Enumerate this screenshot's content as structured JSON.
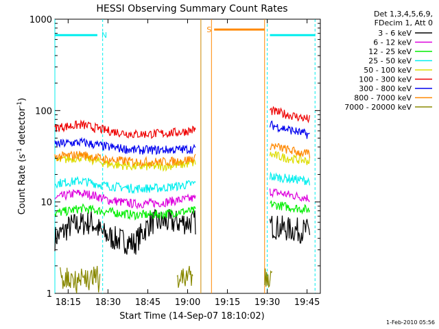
{
  "chart_data": {
    "type": "line",
    "title": "HESSI Observing Summary Count Rates",
    "xlabel": "Start Time (14-Sep-07 18:10:02)",
    "ylabel": "Count Rate (s",
    "ylabel_sup1": "-1",
    "ylabel_mid": " detector",
    "ylabel_sup2": "-1",
    "ylabel_end": ")",
    "y_scale": "log",
    "ylim": [
      1,
      1000
    ],
    "xlim": [
      "18:10",
      "19:50"
    ],
    "x_ticks": [
      "18:15",
      "18:30",
      "18:45",
      "19:00",
      "19:15",
      "19:30",
      "19:45"
    ],
    "y_ticks": [
      {
        "value": 1,
        "label": "1"
      },
      {
        "value": 10,
        "label": "10"
      },
      {
        "value": 100,
        "label": "100"
      },
      {
        "value": 1000,
        "label": "1000"
      }
    ],
    "legend_header": [
      "Det 1,3,4,5,6,9,",
      "FDecim 1, Att 0"
    ],
    "legend_position": "right",
    "footer": "1-Feb-2010 05:56",
    "series": [
      {
        "name": "3 - 6 keV",
        "color": "#000000",
        "points": [
          [
            "18:10",
            4
          ],
          [
            "18:16",
            5.5
          ],
          [
            "18:24",
            6
          ],
          [
            "18:28",
            4.5
          ],
          [
            "18:32",
            4
          ],
          [
            "18:40",
            3.5
          ],
          [
            "18:46",
            6
          ],
          [
            "18:55",
            6
          ],
          [
            "19:03",
            6
          ]
        ],
        "points2": [
          [
            "19:31",
            5.5
          ],
          [
            "19:38",
            5
          ],
          [
            "19:46",
            4.8
          ]
        ]
      },
      {
        "name": "6 - 12 keV",
        "color": "#dd00dd",
        "points": [
          [
            "18:10",
            11
          ],
          [
            "18:18",
            12.5
          ],
          [
            "18:24",
            12
          ],
          [
            "18:30",
            10.5
          ],
          [
            "18:40",
            9.5
          ],
          [
            "18:50",
            9.8
          ],
          [
            "18:57",
            10.5
          ],
          [
            "19:03",
            11
          ]
        ],
        "points2": [
          [
            "19:31",
            13
          ],
          [
            "19:38",
            12
          ],
          [
            "19:46",
            11
          ]
        ]
      },
      {
        "name": "12 - 25 keV",
        "color": "#00ee00",
        "points": [
          [
            "18:10",
            7.5
          ],
          [
            "18:20",
            8.5
          ],
          [
            "18:30",
            7.8
          ],
          [
            "18:40",
            7.2
          ],
          [
            "18:50",
            7.3
          ],
          [
            "18:57",
            7.8
          ],
          [
            "19:03",
            8
          ]
        ],
        "points2": [
          [
            "19:31",
            9.5
          ],
          [
            "19:38",
            8.8
          ],
          [
            "19:46",
            8.2
          ]
        ]
      },
      {
        "name": "25 - 50 keV",
        "color": "#00eeee",
        "points": [
          [
            "18:10",
            16
          ],
          [
            "18:20",
            17
          ],
          [
            "18:30",
            15
          ],
          [
            "18:40",
            14
          ],
          [
            "18:50",
            14.2
          ],
          [
            "18:57",
            15
          ],
          [
            "19:03",
            16
          ]
        ],
        "points2": [
          [
            "19:31",
            19
          ],
          [
            "19:38",
            18
          ],
          [
            "19:46",
            17
          ]
        ],
        "markers": [
          {
            "label": "N",
            "y": 670,
            "x_from": "18:10",
            "x_to": "18:26"
          },
          {
            "y": 670,
            "x_from": "19:31",
            "x_to": "19:48"
          }
        ]
      },
      {
        "name": "50 - 100 keV",
        "color": "#dddd00",
        "points": [
          [
            "18:10",
            28
          ],
          [
            "18:20",
            31
          ],
          [
            "18:30",
            26
          ],
          [
            "18:40",
            24.5
          ],
          [
            "18:50",
            24.5
          ],
          [
            "18:57",
            25.5
          ],
          [
            "19:03",
            27
          ]
        ],
        "points2": [
          [
            "19:31",
            33
          ],
          [
            "19:38",
            30
          ],
          [
            "19:46",
            28
          ]
        ]
      },
      {
        "name": "100 - 300 keV",
        "color": "#ee0000",
        "points": [
          [
            "18:10",
            65
          ],
          [
            "18:20",
            70
          ],
          [
            "18:30",
            60
          ],
          [
            "18:40",
            55
          ],
          [
            "18:50",
            56
          ],
          [
            "18:57",
            58
          ],
          [
            "19:03",
            62
          ]
        ],
        "points2": [
          [
            "19:31",
            100
          ],
          [
            "19:38",
            90
          ],
          [
            "19:46",
            80
          ]
        ]
      },
      {
        "name": "300 - 800 keV",
        "color": "#0000ee",
        "points": [
          [
            "18:10",
            43
          ],
          [
            "18:20",
            45
          ],
          [
            "18:30",
            40
          ],
          [
            "18:40",
            37
          ],
          [
            "18:50",
            37
          ],
          [
            "18:57",
            37.5
          ],
          [
            "19:03",
            38
          ]
        ],
        "points2": [
          [
            "19:31",
            70
          ],
          [
            "19:38",
            62
          ],
          [
            "19:46",
            54
          ]
        ]
      },
      {
        "name": "800 - 7000 keV",
        "color": "#ff8800",
        "points": [
          [
            "18:10",
            31
          ],
          [
            "18:20",
            33
          ],
          [
            "18:30",
            29
          ],
          [
            "18:40",
            27.5
          ],
          [
            "18:50",
            27.5
          ],
          [
            "18:57",
            28
          ],
          [
            "19:03",
            30
          ]
        ],
        "points2": [
          [
            "19:31",
            42
          ],
          [
            "19:38",
            37
          ],
          [
            "19:46",
            33
          ]
        ],
        "markers": [
          {
            "label": "S",
            "y": 770,
            "x_from": "19:10",
            "x_to": "19:29"
          }
        ]
      },
      {
        "name": "7000 - 20000 keV",
        "color": "#888800",
        "points": [
          [
            "18:12",
            1.5
          ],
          [
            "18:20",
            1.5
          ],
          [
            "18:27",
            1.4
          ]
        ],
        "points2": [
          [
            "18:56",
            1.5
          ],
          [
            "19:02",
            1.5
          ]
        ],
        "points3": [
          [
            "19:29",
            1.4
          ],
          [
            "19:32",
            1.4
          ]
        ]
      }
    ],
    "vlines": [
      {
        "x": "18:10",
        "color": "#00eeee",
        "style": "solid"
      },
      {
        "x": "18:28",
        "color": "#00eeee",
        "style": "dashed"
      },
      {
        "x": "19:05",
        "color": "#00eeee",
        "style": "solid"
      },
      {
        "x": "19:05",
        "color": "#ff8800",
        "style": "solid"
      },
      {
        "x": "19:09",
        "color": "#ff8800",
        "style": "solid"
      },
      {
        "x": "19:29",
        "color": "#ff8800",
        "style": "solid"
      },
      {
        "x": "19:30",
        "color": "#00eeee",
        "style": "dashed"
      },
      {
        "x": "19:48",
        "color": "#00eeee",
        "style": "dashed"
      }
    ]
  }
}
